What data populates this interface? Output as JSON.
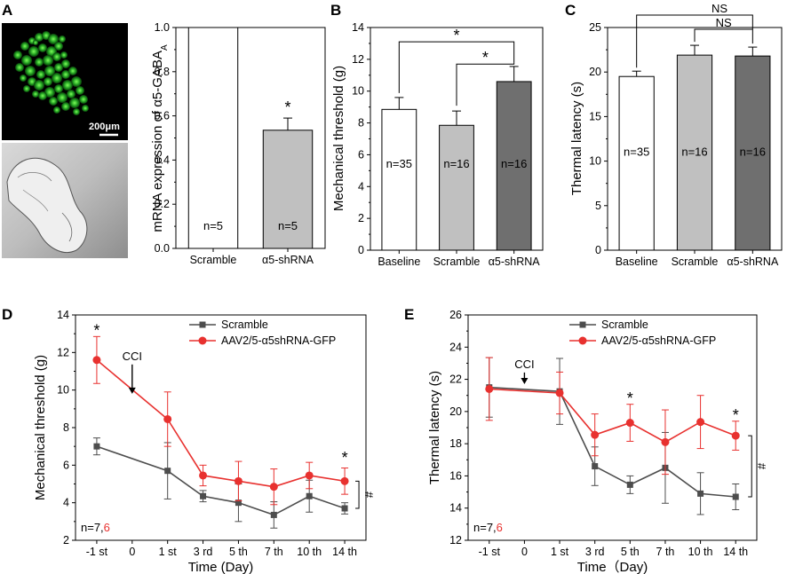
{
  "panel_labels": {
    "A": "A",
    "B": "B",
    "C": "C",
    "D": "D",
    "E": "E"
  },
  "images": {
    "scale_bar": "200μm"
  },
  "colors": {
    "scramble_line": "#4d4d4d",
    "aav_line": "#e8312f",
    "bar_white": "#ffffff",
    "bar_light": "#c0c0c0",
    "bar_dark": "#6f6f6f",
    "n_red": "#e8312f"
  },
  "chart_data": [
    {
      "id": "A",
      "type": "bar",
      "ylabel_main": "mRNA expression of α5-GABA",
      "ylabel_sub": "A",
      "categories": [
        "Scramble",
        "α5-shRNA"
      ],
      "values": [
        1.0,
        0.535
      ],
      "errors": [
        0,
        0.055
      ],
      "bar_colors": [
        "#ffffff",
        "#c0c0c0"
      ],
      "n_labels": [
        "n=5",
        "n=5"
      ],
      "ylim": [
        0,
        1.0
      ],
      "yticks": [
        "0.0",
        "0.2",
        "0.4",
        "0.6",
        "0.8",
        "1.0"
      ],
      "stars": [
        "*"
      ]
    },
    {
      "id": "B",
      "type": "bar",
      "ylabel": "Mechanical threshold (g)",
      "categories": [
        "Baseline",
        "Scramble",
        "α5-shRNA"
      ],
      "values": [
        8.85,
        7.85,
        10.6
      ],
      "errors": [
        0.75,
        0.9,
        0.95
      ],
      "bar_colors": [
        "#ffffff",
        "#c0c0c0",
        "#6f6f6f"
      ],
      "n_labels": [
        "n=35",
        "n=16",
        "n=16"
      ],
      "ylim": [
        0,
        14
      ],
      "yticks": [
        "0",
        "2",
        "4",
        "6",
        "8",
        "10",
        "12",
        "14"
      ],
      "brackets": [
        "*",
        "*"
      ]
    },
    {
      "id": "C",
      "type": "bar",
      "ylabel": "Thermal latency (s)",
      "categories": [
        "Baseline",
        "Scramble",
        "α5-shRNA"
      ],
      "values": [
        19.5,
        21.9,
        21.8
      ],
      "errors": [
        0.6,
        1.1,
        1.0
      ],
      "bar_colors": [
        "#ffffff",
        "#c0c0c0",
        "#6f6f6f"
      ],
      "n_labels": [
        "n=35",
        "n=16",
        "n=16"
      ],
      "ylim": [
        0,
        25
      ],
      "yticks": [
        "0",
        "5",
        "10",
        "15",
        "20",
        "25"
      ],
      "brackets": [
        "NS",
        "NS"
      ]
    },
    {
      "id": "D",
      "type": "line",
      "ylabel": "Mechanical threshold (g)",
      "xlabel": "Time (Day)",
      "x_categories": [
        "-1 st",
        "0",
        "1 st",
        "3 rd",
        "5 th",
        "7 th",
        "10 th",
        "14 th"
      ],
      "x_positions": [
        -1,
        0,
        1,
        2,
        3,
        4,
        5,
        6
      ],
      "ylim": [
        2,
        14
      ],
      "yticks": [
        "2",
        "4",
        "6",
        "8",
        "10",
        "12",
        "14"
      ],
      "series": [
        {
          "name": "Scramble",
          "color": "#4d4d4d",
          "marker": "square",
          "x": [
            -1,
            1,
            2,
            3,
            4,
            5,
            6
          ],
          "values": [
            7.0,
            5.7,
            4.35,
            4.0,
            3.35,
            4.35,
            3.7
          ],
          "errors": [
            0.45,
            1.5,
            0.3,
            1.0,
            0.7,
            0.85,
            0.3
          ]
        },
        {
          "name": "AAV2/5-α5shRNA-GFP",
          "color": "#e8312f",
          "marker": "circle",
          "x": [
            -1,
            1,
            2,
            3,
            4,
            5,
            6
          ],
          "values": [
            11.6,
            8.45,
            5.45,
            5.15,
            4.85,
            5.45,
            5.15
          ],
          "errors": [
            1.25,
            1.45,
            0.55,
            1.05,
            0.95,
            0.7,
            0.7
          ]
        }
      ],
      "arrow_label": "CCI",
      "stars": [
        "*",
        "*"
      ],
      "hash": "#",
      "n_prefix": "n=7,",
      "n_red": "6"
    },
    {
      "id": "E",
      "type": "line",
      "ylabel": "Thermal latency (s)",
      "xlabel": "Time（Day)",
      "x_categories": [
        "-1 st",
        "0",
        "1 st",
        "3 rd",
        "5 th",
        "7 th",
        "10 th",
        "14 th"
      ],
      "x_positions": [
        -1,
        0,
        1,
        2,
        3,
        4,
        5,
        6
      ],
      "ylim": [
        12,
        26
      ],
      "yticks": [
        "12",
        "14",
        "16",
        "18",
        "20",
        "22",
        "24",
        "26"
      ],
      "series": [
        {
          "name": "Scramble",
          "color": "#4d4d4d",
          "marker": "square",
          "x": [
            -1,
            1,
            2,
            3,
            4,
            5,
            6
          ],
          "values": [
            21.5,
            21.25,
            16.6,
            15.45,
            16.5,
            14.9,
            14.7
          ],
          "errors": [
            1.85,
            2.05,
            1.2,
            0.55,
            2.2,
            1.3,
            0.8
          ]
        },
        {
          "name": "AAV2/5-α5shRNA-GFP",
          "color": "#e8312f",
          "marker": "circle",
          "x": [
            -1,
            1,
            2,
            3,
            4,
            5,
            6
          ],
          "values": [
            21.4,
            21.15,
            18.55,
            19.3,
            18.1,
            19.35,
            18.5
          ],
          "errors": [
            1.95,
            1.3,
            1.3,
            1.15,
            2.0,
            1.65,
            0.9
          ]
        }
      ],
      "arrow_label": "CCI",
      "stars": [
        "*",
        "*"
      ],
      "hash": "#",
      "n_prefix": "n=7,",
      "n_red": "6"
    }
  ]
}
